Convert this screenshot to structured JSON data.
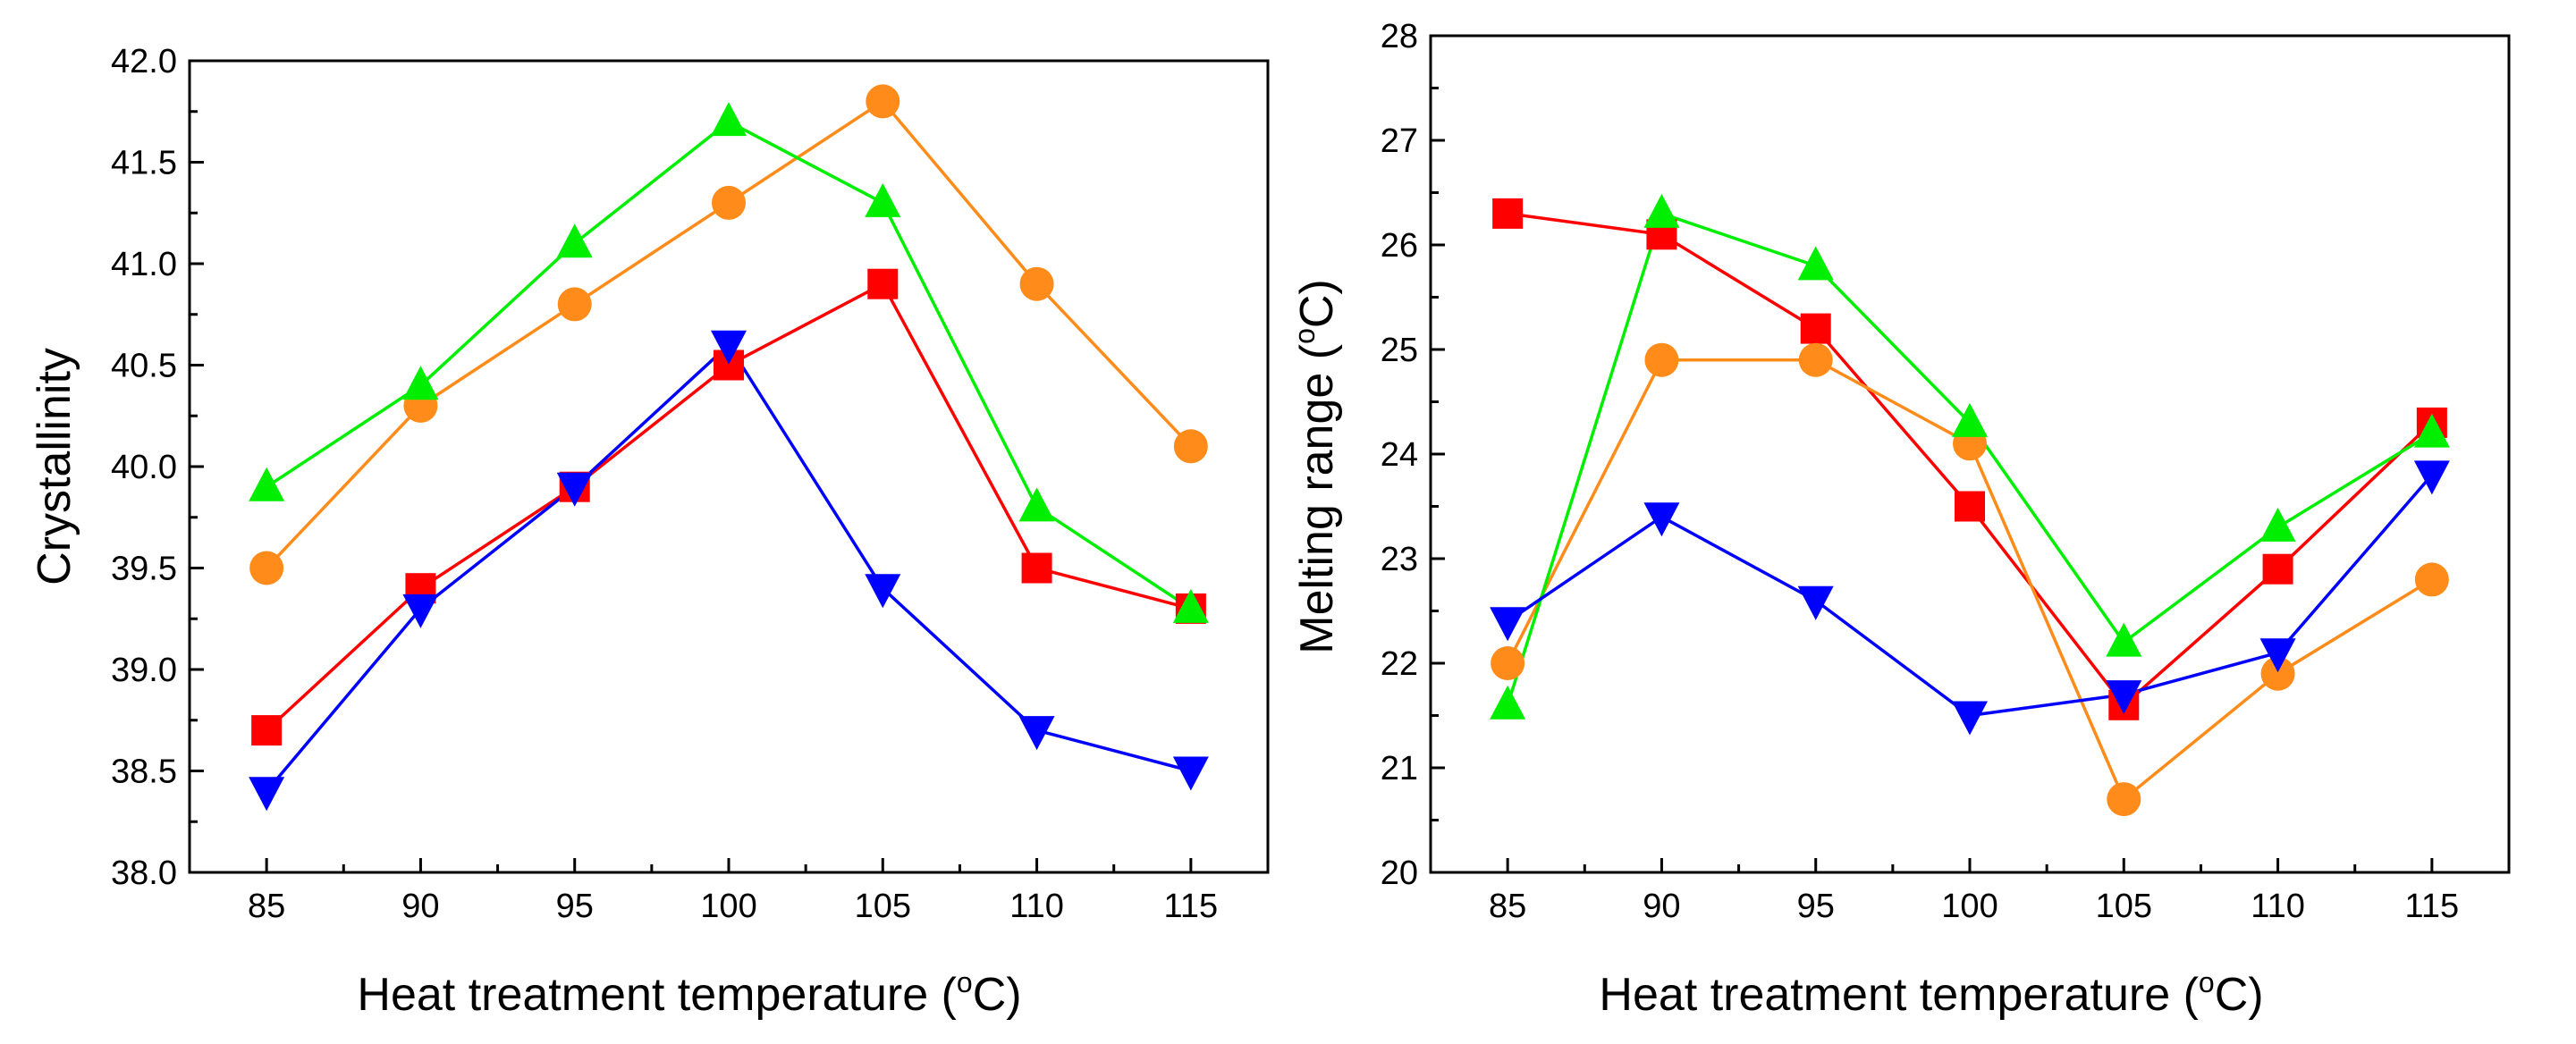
{
  "chart_data": [
    {
      "type": "line",
      "title": "",
      "xlabel": "Heat treatment temperature (",
      "xlabel_sup": "o",
      "xlabel_suffix": "C)",
      "ylabel": "Crystallinity",
      "x": [
        85,
        90,
        95,
        100,
        105,
        110,
        115
      ],
      "xlim": [
        82.5,
        117.5
      ],
      "ylim": [
        38.0,
        42.0
      ],
      "xticks": [
        85,
        90,
        95,
        100,
        105,
        110,
        115
      ],
      "yticks": [
        38.0,
        38.5,
        39.0,
        39.5,
        40.0,
        40.5,
        41.0,
        41.5,
        42.0
      ],
      "ytick_decimals": 1,
      "grid": false,
      "series": [
        {
          "name": "square",
          "marker": "square",
          "color": "#ff0000",
          "values": [
            38.7,
            39.4,
            39.9,
            40.5,
            40.9,
            39.5,
            39.3
          ]
        },
        {
          "name": "circle",
          "marker": "circle",
          "color": "#ff8c1a",
          "values": [
            39.5,
            40.3,
            40.8,
            41.3,
            41.8,
            40.9,
            40.1
          ]
        },
        {
          "name": "triangle-up",
          "marker": "triangle-up",
          "color": "#00ee00",
          "values": [
            39.9,
            40.4,
            41.1,
            41.7,
            41.3,
            39.8,
            39.3
          ]
        },
        {
          "name": "triangle-down",
          "marker": "triangle-down",
          "color": "#0000ff",
          "values": [
            38.4,
            39.3,
            39.9,
            40.6,
            39.4,
            38.7,
            38.5
          ]
        }
      ]
    },
    {
      "type": "line",
      "title": "",
      "xlabel": "Heat treatment temperature (",
      "xlabel_sup": "o",
      "xlabel_suffix": "C)",
      "ylabel": "Melting range (",
      "ylabel_sup": "o",
      "ylabel_suffix": "C)",
      "x": [
        85,
        90,
        95,
        100,
        105,
        110,
        115
      ],
      "xlim": [
        82.5,
        117.5
      ],
      "ylim": [
        20,
        28
      ],
      "xticks": [
        85,
        90,
        95,
        100,
        105,
        110,
        115
      ],
      "yticks": [
        20,
        21,
        22,
        23,
        24,
        25,
        26,
        27,
        28
      ],
      "ytick_decimals": 0,
      "grid": false,
      "series": [
        {
          "name": "square",
          "marker": "square",
          "color": "#ff0000",
          "values": [
            26.3,
            26.1,
            25.2,
            23.5,
            21.6,
            22.9,
            24.3
          ]
        },
        {
          "name": "circle",
          "marker": "circle",
          "color": "#ff8c1a",
          "values": [
            22.0,
            24.9,
            24.9,
            24.1,
            20.7,
            21.9,
            22.8
          ]
        },
        {
          "name": "triangle-up",
          "marker": "triangle-up",
          "color": "#00ee00",
          "values": [
            21.6,
            26.3,
            25.8,
            24.3,
            22.2,
            23.3,
            24.2
          ]
        },
        {
          "name": "triangle-down",
          "marker": "triangle-down",
          "color": "#0000ff",
          "values": [
            22.4,
            23.4,
            22.6,
            21.5,
            21.7,
            22.1,
            23.8
          ]
        }
      ]
    }
  ]
}
